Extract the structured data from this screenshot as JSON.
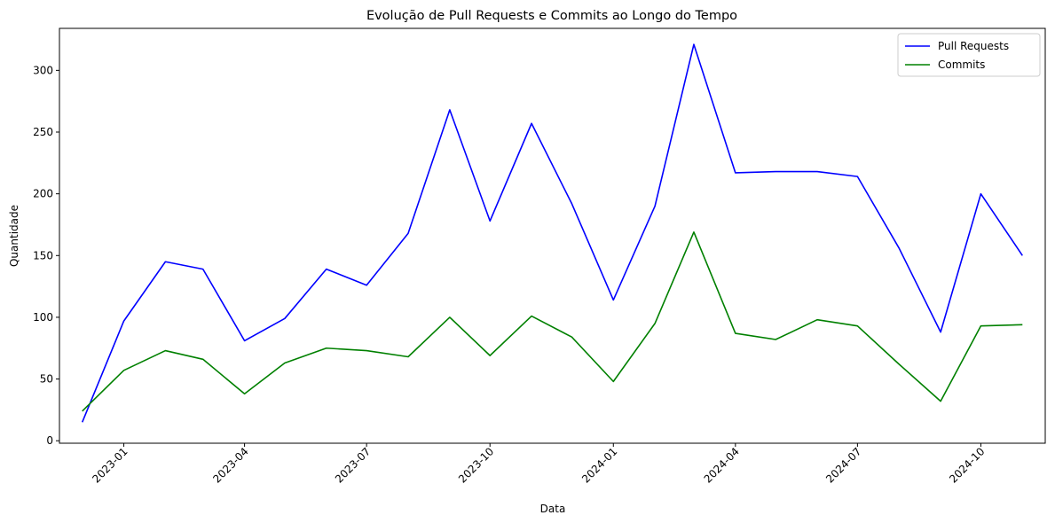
{
  "chart_data": {
    "type": "line",
    "title": "Evolução de Pull Requests e Commits ao Longo do Tempo",
    "xlabel": "Data",
    "ylabel": "Quantidade",
    "x": [
      "2022-12-01",
      "2023-01-01",
      "2023-02-01",
      "2023-03-01",
      "2023-04-01",
      "2023-05-01",
      "2023-06-01",
      "2023-07-01",
      "2023-08-01",
      "2023-09-01",
      "2023-10-01",
      "2023-11-01",
      "2023-12-01",
      "2024-01-01",
      "2024-02-01",
      "2024-03-01",
      "2024-04-01",
      "2024-05-01",
      "2024-06-01",
      "2024-07-01",
      "2024-08-01",
      "2024-09-01",
      "2024-10-01",
      "2024-11-01"
    ],
    "x_ticks": [
      "2023-01",
      "2023-04",
      "2023-07",
      "2023-10",
      "2024-01",
      "2024-04",
      "2024-07",
      "2024-10"
    ],
    "xlim": [
      "2022-11-14",
      "2024-11-18"
    ],
    "y_ticks": [
      0,
      50,
      100,
      150,
      200,
      250,
      300
    ],
    "ylim": [
      -2,
      334
    ],
    "grid": false,
    "legend_position": "top-right",
    "series": [
      {
        "name": "Pull Requests",
        "color": "#0000ff",
        "values": [
          15,
          97,
          145,
          139,
          81,
          99,
          139,
          126,
          168,
          268,
          178,
          257,
          192,
          114,
          190,
          321,
          217,
          218,
          218,
          214,
          156,
          88,
          200,
          150
        ]
      },
      {
        "name": "Commits",
        "color": "#008000",
        "values": [
          24,
          57,
          73,
          66,
          38,
          63,
          75,
          73,
          68,
          100,
          69,
          101,
          84,
          48,
          95,
          169,
          87,
          82,
          98,
          93,
          62,
          32,
          93,
          94
        ]
      }
    ]
  }
}
